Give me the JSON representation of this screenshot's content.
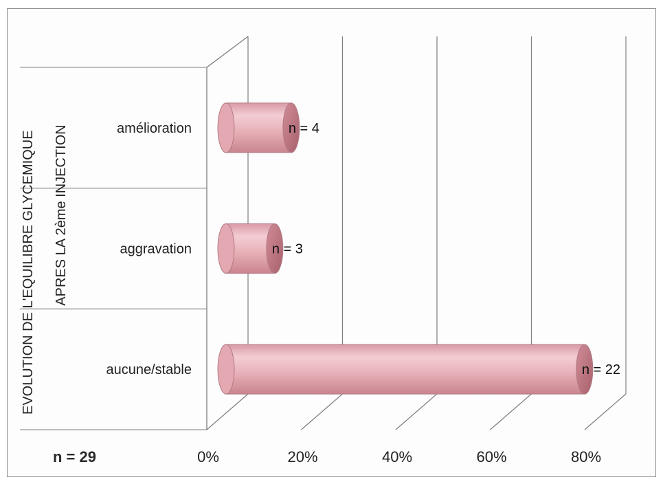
{
  "chart_data": {
    "type": "bar",
    "orientation": "horizontal",
    "style": "3d-cylinder",
    "categories": [
      "amélioration",
      "aggravation",
      "aucune/stable"
    ],
    "values": [
      13.8,
      10.3,
      75.9
    ],
    "data_labels": [
      "n = 4",
      "n = 3",
      "n = 22"
    ],
    "x_tick_labels": [
      "0%",
      "20%",
      "40%",
      "60%",
      "80%"
    ],
    "xlim": [
      0,
      80
    ],
    "ylabel_line1": "EVOLUTION DE L'EQUILIBRE GLYCEMIQUE",
    "ylabel_line2": "APRES LA 2ème INJECTION",
    "total_label": "n = 29",
    "grid": true,
    "legend": "none",
    "bar_color": "#e8b4bc",
    "bar_edge_color": "#b07a84",
    "grid_color": "#7d7d7d"
  }
}
